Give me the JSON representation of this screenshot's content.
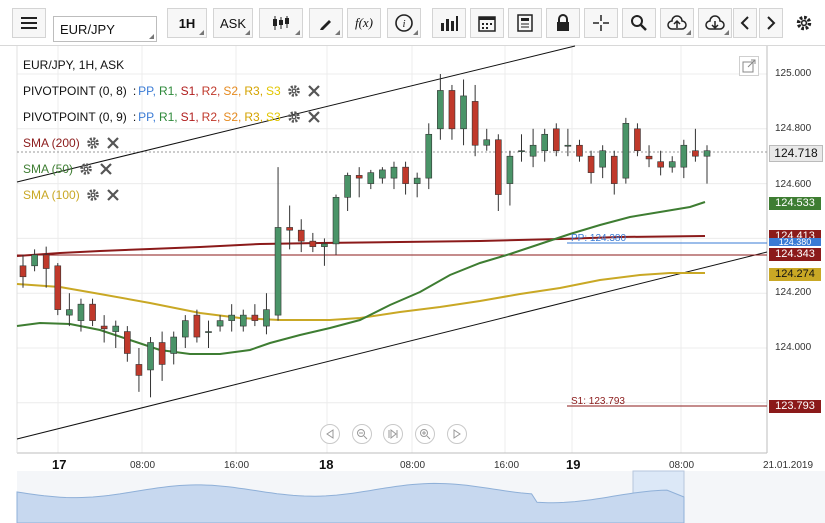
{
  "toolbar": {
    "symbol": "EUR/JPY",
    "interval": "1H",
    "price_type": "ASK",
    "function_label": "f(x)"
  },
  "legend": {
    "title": "EUR/JPY, 1H, ASK",
    "pivot1": {
      "name": "PIVOTPOINT (0, 8)",
      "sep": ":",
      "levels": [
        "PP,",
        "R1,",
        "S1,",
        "R2,",
        "S2,",
        "R3,",
        "S3"
      ]
    },
    "pivot2": {
      "name": "PIVOTPOINT (0, 9)",
      "sep": ":",
      "levels": [
        "PP,",
        "R1,",
        "S1,",
        "R2,",
        "S2,",
        "R3,",
        "S3"
      ]
    },
    "sma200": "SMA (200)",
    "sma50": "SMA (50)",
    "sma100": "SMA (100)"
  },
  "colors": {
    "pp": "#3a7bd5",
    "r1": "#2f8a3b",
    "s1": "#b01c1c",
    "r2": "#c0392b",
    "s2": "#e58a1f",
    "r3": "#d4a300",
    "s3": "#e2c600",
    "sma200": "#8b1a1a",
    "sma50": "#3e7d32",
    "sma100": "#c9a825",
    "bull": "#4a9468",
    "bear": "#c0392b"
  },
  "chart_data": {
    "type": "candlestick",
    "y_axis_ticks": [
      "125.000",
      "124.800",
      "124.600",
      "124.200",
      "124.000"
    ],
    "x_axis_ticks": [
      "17",
      "08:00",
      "16:00",
      "18",
      "08:00",
      "16:00",
      "19",
      "08:00",
      "21.01.2019"
    ],
    "current_price": "124.718",
    "price_tags": {
      "sma50": "124.533",
      "pp_a": "124.413",
      "pp_b": "124.380",
      "sma200": "124.343",
      "sma100": "124.274",
      "s1": "123.793"
    },
    "annotations": {
      "pp": "PP: 124.380",
      "s1": "S1: 123.793"
    },
    "candles": [
      [
        124.3,
        124.34,
        124.22,
        124.26
      ],
      [
        124.3,
        124.36,
        124.28,
        124.34
      ],
      [
        124.34,
        124.37,
        124.22,
        124.29
      ],
      [
        124.3,
        124.31,
        124.12,
        124.14
      ],
      [
        124.12,
        124.2,
        124.08,
        124.14
      ],
      [
        124.1,
        124.18,
        124.06,
        124.16
      ],
      [
        124.16,
        124.18,
        124.08,
        124.1
      ],
      [
        124.08,
        124.12,
        124.02,
        124.07
      ],
      [
        124.06,
        124.1,
        124.0,
        124.08
      ],
      [
        124.06,
        124.08,
        123.95,
        123.98
      ],
      [
        123.94,
        124.0,
        123.84,
        123.9
      ],
      [
        123.92,
        124.04,
        123.82,
        124.02
      ],
      [
        124.02,
        124.06,
        123.88,
        123.94
      ],
      [
        123.98,
        124.06,
        123.94,
        124.04
      ],
      [
        124.04,
        124.12,
        124.0,
        124.1
      ],
      [
        124.12,
        124.14,
        124.02,
        124.04
      ],
      [
        124.06,
        124.1,
        124.0,
        124.06
      ],
      [
        124.08,
        124.12,
        124.06,
        124.1
      ],
      [
        124.1,
        124.16,
        124.06,
        124.12
      ],
      [
        124.08,
        124.14,
        124.06,
        124.12
      ],
      [
        124.12,
        124.16,
        124.08,
        124.1
      ],
      [
        124.08,
        124.2,
        124.05,
        124.14
      ],
      [
        124.12,
        124.66,
        124.1,
        124.44
      ],
      [
        124.44,
        124.52,
        124.36,
        124.43
      ],
      [
        124.43,
        124.47,
        124.35,
        124.39
      ],
      [
        124.39,
        124.42,
        124.35,
        124.37
      ],
      [
        124.37,
        124.4,
        124.3,
        124.38
      ],
      [
        124.38,
        124.56,
        124.34,
        124.55
      ],
      [
        124.55,
        124.64,
        124.5,
        124.63
      ],
      [
        124.63,
        124.66,
        124.55,
        124.62
      ],
      [
        124.6,
        124.65,
        124.58,
        124.64
      ],
      [
        124.62,
        124.66,
        124.6,
        124.65
      ],
      [
        124.62,
        124.68,
        124.58,
        124.66
      ],
      [
        124.66,
        124.68,
        124.56,
        124.6
      ],
      [
        124.6,
        124.64,
        124.55,
        124.62
      ],
      [
        124.62,
        124.82,
        124.58,
        124.78
      ],
      [
        124.8,
        125.0,
        124.76,
        124.94
      ],
      [
        124.94,
        124.96,
        124.76,
        124.8
      ],
      [
        124.8,
        124.98,
        124.74,
        124.92
      ],
      [
        124.9,
        124.96,
        124.7,
        124.74
      ],
      [
        124.74,
        124.8,
        124.72,
        124.76
      ],
      [
        124.76,
        124.78,
        124.5,
        124.56
      ],
      [
        124.6,
        124.72,
        124.52,
        124.7
      ],
      [
        124.72,
        124.78,
        124.68,
        124.72
      ],
      [
        124.7,
        124.8,
        124.66,
        124.74
      ],
      [
        124.72,
        124.8,
        124.68,
        124.78
      ],
      [
        124.8,
        124.82,
        124.7,
        124.72
      ],
      [
        124.74,
        124.8,
        124.7,
        124.74
      ],
      [
        124.74,
        124.76,
        124.68,
        124.7
      ],
      [
        124.7,
        124.72,
        124.6,
        124.64
      ],
      [
        124.66,
        124.74,
        124.62,
        124.72
      ],
      [
        124.7,
        124.72,
        124.56,
        124.6
      ],
      [
        124.62,
        124.84,
        124.6,
        124.82
      ],
      [
        124.8,
        124.82,
        124.7,
        124.72
      ],
      [
        124.7,
        124.74,
        124.66,
        124.69
      ],
      [
        124.68,
        124.72,
        124.63,
        124.66
      ],
      [
        124.66,
        124.7,
        124.64,
        124.68
      ],
      [
        124.66,
        124.76,
        124.62,
        124.74
      ],
      [
        124.72,
        124.8,
        124.68,
        124.7
      ],
      [
        124.7,
        124.74,
        124.6,
        124.72
      ]
    ]
  }
}
